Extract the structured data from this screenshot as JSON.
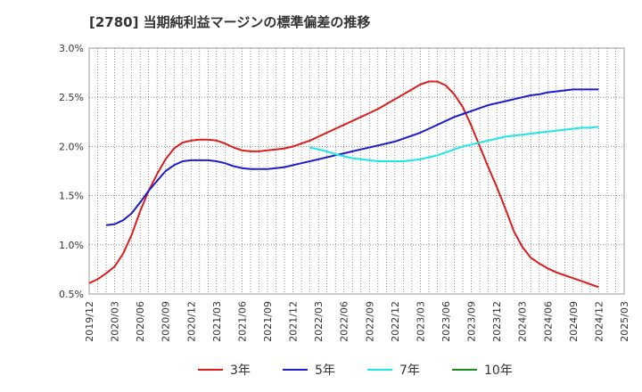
{
  "chart_data": {
    "type": "line",
    "title": "[2780]  当期純利益マージンの標準偏差の推移",
    "xlabel": "",
    "ylabel": "",
    "ylim": [
      0.5,
      3.0
    ],
    "yticks": [
      "0.5%",
      "1.0%",
      "1.5%",
      "2.0%",
      "2.5%",
      "3.0%"
    ],
    "xticks": [
      "2019/12",
      "2020/03",
      "2020/06",
      "2020/09",
      "2020/12",
      "2021/03",
      "2021/06",
      "2021/09",
      "2021/12",
      "2022/03",
      "2022/06",
      "2022/09",
      "2022/12",
      "2023/03",
      "2023/06",
      "2023/09",
      "2023/12",
      "2024/03",
      "2024/06",
      "2024/09",
      "2024/12",
      "2025/03"
    ],
    "x_start": "2019/12",
    "x_end": "2025/03",
    "grid": true,
    "legend_position": "bottom",
    "series": [
      {
        "name": "3年",
        "color": "#dd1c1c",
        "x": [
          "2019/12",
          "2020/01",
          "2020/02",
          "2020/03",
          "2020/04",
          "2020/05",
          "2020/06",
          "2020/07",
          "2020/08",
          "2020/09",
          "2020/10",
          "2020/11",
          "2020/12",
          "2021/01",
          "2021/02",
          "2021/03",
          "2021/04",
          "2021/05",
          "2021/06",
          "2021/07",
          "2021/08",
          "2021/09",
          "2021/10",
          "2021/11",
          "2021/12",
          "2022/01",
          "2022/02",
          "2022/03",
          "2022/04",
          "2022/05",
          "2022/06",
          "2022/07",
          "2022/08",
          "2022/09",
          "2022/10",
          "2022/11",
          "2022/12",
          "2023/01",
          "2023/02",
          "2023/03",
          "2023/04",
          "2023/05",
          "2023/06",
          "2023/07",
          "2023/08",
          "2023/09",
          "2023/10",
          "2023/11",
          "2023/12",
          "2024/01",
          "2024/02",
          "2024/03",
          "2024/04",
          "2024/05",
          "2024/06",
          "2024/07",
          "2024/08",
          "2024/09",
          "2024/10",
          "2024/11",
          "2024/12"
        ],
        "values": [
          0.61,
          0.65,
          0.71,
          0.78,
          0.91,
          1.1,
          1.34,
          1.55,
          1.72,
          1.87,
          1.98,
          2.04,
          2.06,
          2.07,
          2.07,
          2.06,
          2.03,
          1.99,
          1.96,
          1.95,
          1.95,
          1.96,
          1.97,
          1.98,
          2.0,
          2.03,
          2.06,
          2.1,
          2.14,
          2.18,
          2.22,
          2.26,
          2.3,
          2.34,
          2.38,
          2.43,
          2.48,
          2.53,
          2.58,
          2.63,
          2.66,
          2.66,
          2.62,
          2.53,
          2.4,
          2.21,
          2.0,
          1.79,
          1.59,
          1.37,
          1.14,
          0.98,
          0.87,
          0.81,
          0.76,
          0.72,
          0.69,
          0.66,
          0.63,
          0.6,
          0.57
        ]
      },
      {
        "name": "5年",
        "color": "#1c1ccc",
        "x": [
          "2020/02",
          "2020/03",
          "2020/04",
          "2020/05",
          "2020/06",
          "2020/07",
          "2020/08",
          "2020/09",
          "2020/10",
          "2020/11",
          "2020/12",
          "2021/01",
          "2021/02",
          "2021/03",
          "2021/04",
          "2021/05",
          "2021/06",
          "2021/07",
          "2021/08",
          "2021/09",
          "2021/10",
          "2021/11",
          "2021/12",
          "2022/01",
          "2022/02",
          "2022/03",
          "2022/04",
          "2022/05",
          "2022/06",
          "2022/07",
          "2022/08",
          "2022/09",
          "2022/10",
          "2022/11",
          "2022/12",
          "2023/01",
          "2023/02",
          "2023/03",
          "2023/04",
          "2023/05",
          "2023/06",
          "2023/07",
          "2023/08",
          "2023/09",
          "2023/10",
          "2023/11",
          "2023/12",
          "2024/01",
          "2024/02",
          "2024/03",
          "2024/04",
          "2024/05",
          "2024/06",
          "2024/07",
          "2024/08",
          "2024/09",
          "2024/10",
          "2024/11",
          "2024/12"
        ],
        "values": [
          1.2,
          1.21,
          1.25,
          1.32,
          1.43,
          1.55,
          1.65,
          1.75,
          1.81,
          1.85,
          1.86,
          1.86,
          1.86,
          1.85,
          1.83,
          1.8,
          1.78,
          1.77,
          1.77,
          1.77,
          1.78,
          1.79,
          1.81,
          1.83,
          1.85,
          1.87,
          1.89,
          1.91,
          1.93,
          1.95,
          1.97,
          1.99,
          2.01,
          2.03,
          2.05,
          2.08,
          2.11,
          2.14,
          2.18,
          2.22,
          2.26,
          2.3,
          2.33,
          2.36,
          2.39,
          2.42,
          2.44,
          2.46,
          2.48,
          2.5,
          2.52,
          2.53,
          2.55,
          2.56,
          2.57,
          2.58,
          2.58,
          2.58,
          2.58
        ]
      },
      {
        "name": "7年",
        "color": "#1ce6e6",
        "x": [
          "2022/02",
          "2022/03",
          "2022/04",
          "2022/05",
          "2022/06",
          "2022/07",
          "2022/08",
          "2022/09",
          "2022/10",
          "2022/11",
          "2022/12",
          "2023/01",
          "2023/02",
          "2023/03",
          "2023/04",
          "2023/05",
          "2023/06",
          "2023/07",
          "2023/08",
          "2023/09",
          "2023/10",
          "2023/11",
          "2023/12",
          "2024/01",
          "2024/02",
          "2024/03",
          "2024/04",
          "2024/05",
          "2024/06",
          "2024/07",
          "2024/08",
          "2024/09",
          "2024/10",
          "2024/11",
          "2024/12"
        ],
        "values": [
          1.99,
          1.97,
          1.95,
          1.92,
          1.9,
          1.88,
          1.87,
          1.86,
          1.85,
          1.85,
          1.85,
          1.85,
          1.86,
          1.87,
          1.89,
          1.91,
          1.94,
          1.97,
          2.0,
          2.02,
          2.04,
          2.06,
          2.08,
          2.1,
          2.11,
          2.12,
          2.13,
          2.14,
          2.15,
          2.16,
          2.17,
          2.18,
          2.19,
          2.19,
          2.2
        ]
      },
      {
        "name": "10年",
        "color": "#1c8c1c",
        "x": [],
        "values": []
      }
    ]
  }
}
